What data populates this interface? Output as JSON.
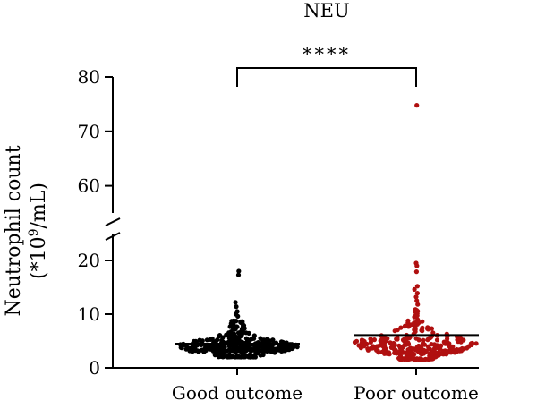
{
  "chart_data": {
    "type": "scatter",
    "subtype": "beeswarm-dotplot-with-broken-axis",
    "title": "NEU",
    "ylabel_line1": "Neutrophil count",
    "ylabel_line2_prefix": "(*10",
    "ylabel_line2_sup": "9",
    "ylabel_line2_suffix": "/mL)",
    "categories": [
      "Good outcome",
      "Poor outcome"
    ],
    "significance": "****",
    "y_ranges": [
      [
        0,
        25
      ],
      [
        55,
        80
      ]
    ],
    "y_ticks_lower": [
      0,
      10,
      20
    ],
    "y_ticks_upper": [
      60,
      70,
      80
    ],
    "axis_break": true,
    "series": [
      {
        "category": "Good outcome",
        "color": "#000000",
        "center_line": 4.5,
        "n_points_approx": 420,
        "bulk_range": [
          2,
          9
        ],
        "outliers": [
          18.0,
          17.3,
          12.2,
          11.4,
          10.5,
          10.0,
          9.6
        ]
      },
      {
        "category": "Poor outcome",
        "color": "#b01010",
        "center_line": 6.1,
        "n_points_approx": 320,
        "bulk_range": [
          1.5,
          11
        ],
        "outliers": [
          74.8,
          19.5,
          19.0,
          17.9,
          15.2,
          14.6,
          13.9,
          13.2,
          12.5,
          11.8
        ]
      }
    ]
  }
}
